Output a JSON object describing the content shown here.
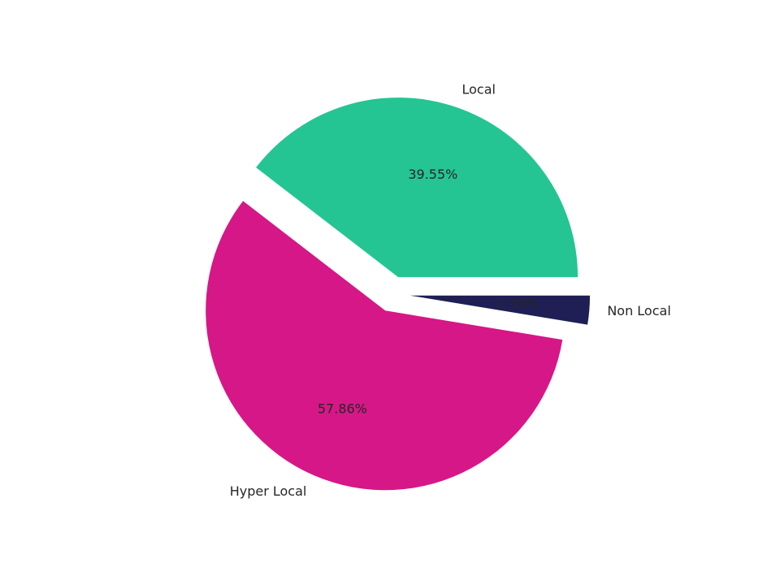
{
  "chart_data": {
    "type": "pie",
    "title": "",
    "slices": [
      {
        "label": "Local",
        "value": 39.55,
        "pct_label": "39.55%",
        "color": "#24c592",
        "exploded": true
      },
      {
        "label": "Hyper Local",
        "value": 57.86,
        "pct_label": "57.86%",
        "color": "#d61787",
        "exploded": true
      },
      {
        "label": "Non Local",
        "value": 2.59,
        "pct_label": "2.59%",
        "color": "#1f1f55",
        "exploded": true
      }
    ],
    "start": "counterclockwise from positive x-axis",
    "legend": "none",
    "background": "#ffffff"
  }
}
